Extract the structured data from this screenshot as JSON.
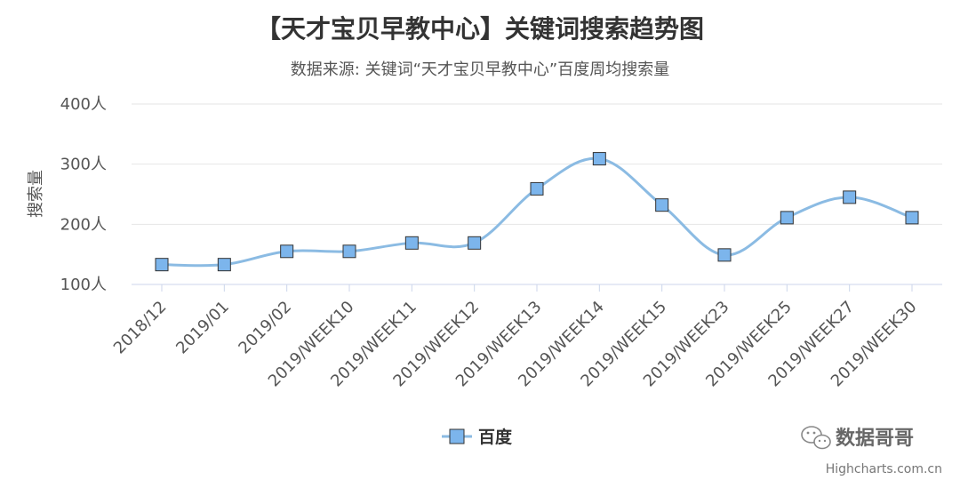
{
  "chart_data": {
    "type": "line",
    "title": "【天才宝贝早教中心】关键词搜索趋势图",
    "subtitle": "数据来源: 关键词“天才宝贝早教中心”百度周均搜索量",
    "ylabel": "搜索量",
    "xlabel": "",
    "ylim": [
      100,
      400
    ],
    "yticks": [
      100,
      200,
      300,
      400
    ],
    "ytick_labels": [
      "100人",
      "200人",
      "300人",
      "400人"
    ],
    "categories": [
      "2018/12",
      "2019/01",
      "2019/02",
      "2019/WEEK10",
      "2019/WEEK11",
      "2019/WEEK12",
      "2019/WEEK13",
      "2019/WEEK14",
      "2019/WEEK15",
      "2019/WEEK23",
      "2019/WEEK25",
      "2019/WEEK27",
      "2019/WEEK30"
    ],
    "series": [
      {
        "name": "百度",
        "values": [
          133,
          133,
          155,
          155,
          169,
          169,
          259,
          309,
          232,
          149,
          211,
          245,
          211
        ]
      }
    ],
    "grid": true,
    "legend": "bottom-center",
    "line_color": "#8bbbe3",
    "marker_color": "#7cb5ec",
    "marker_stroke": "#333333"
  },
  "watermark": {
    "label": "数据哥哥",
    "icon": "wechat-icon"
  },
  "credit": "Highcharts.com.cn"
}
